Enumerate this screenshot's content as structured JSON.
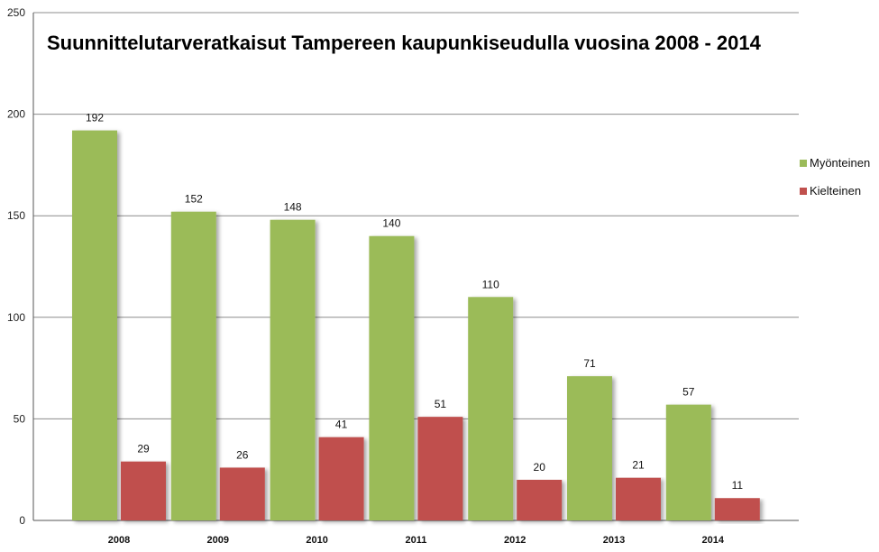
{
  "chart_data": {
    "type": "bar",
    "title": "Suunnittelutarveratkaisut Tampereen kaupunkiseudulla vuosina 2008 - 2014",
    "xlabel": "",
    "ylabel": "",
    "categories": [
      "2008",
      "2009",
      "2010",
      "2011",
      "2012",
      "2013",
      "2014"
    ],
    "series": [
      {
        "name": "Myönteinen",
        "color": "#9BBB59",
        "values": [
          192,
          152,
          148,
          140,
          110,
          71,
          57
        ]
      },
      {
        "name": "Kielteinen",
        "color": "#C0504D",
        "values": [
          29,
          26,
          41,
          51,
          20,
          21,
          11
        ]
      }
    ],
    "ylim": [
      0,
      250
    ],
    "yticks": [
      0,
      50,
      100,
      150,
      200,
      250
    ],
    "grid": true,
    "legend": "right"
  }
}
